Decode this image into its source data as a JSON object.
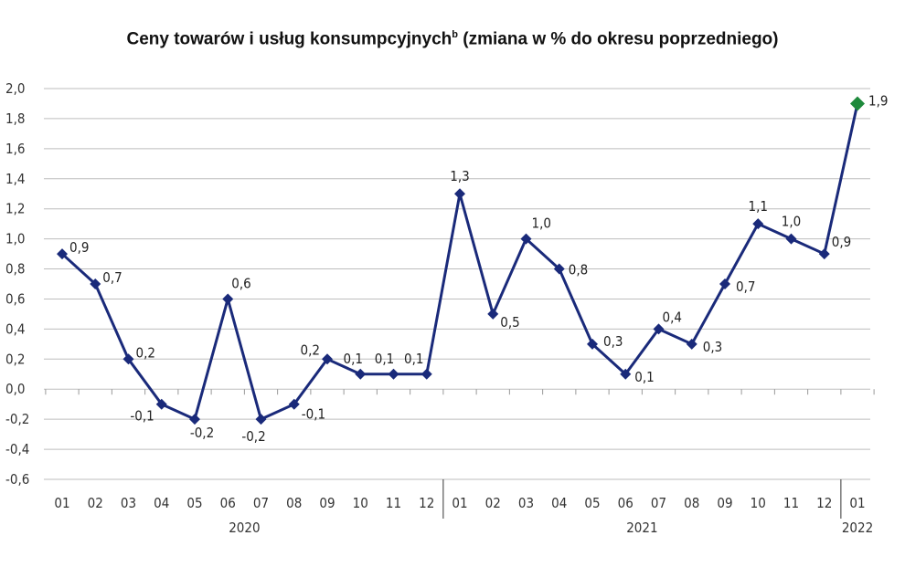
{
  "chart_data": {
    "type": "line",
    "title": "Ceny towarów i usług konsumpcyjnych",
    "title_sup": "b",
    "title_suffix": " (zmiana w % do okresu poprzedniego)",
    "ylim": [
      -0.6,
      2.0
    ],
    "yticks": [
      "2,0",
      "1,8",
      "1,6",
      "1,4",
      "1,2",
      "1,0",
      "0,8",
      "0,6",
      "0,4",
      "0,2",
      "0,0",
      "-0,2",
      "-0,4",
      "-0,6"
    ],
    "ytick_values": [
      2.0,
      1.8,
      1.6,
      1.4,
      1.2,
      1.0,
      0.8,
      0.6,
      0.4,
      0.2,
      0.0,
      -0.2,
      -0.4,
      -0.6
    ],
    "grid": true,
    "categories": [
      "01",
      "02",
      "03",
      "04",
      "05",
      "06",
      "07",
      "08",
      "09",
      "10",
      "11",
      "12",
      "01",
      "02",
      "03",
      "04",
      "05",
      "06",
      "07",
      "08",
      "09",
      "10",
      "11",
      "12",
      "01"
    ],
    "year_groups": [
      {
        "label": "2020",
        "start": 0,
        "end": 11
      },
      {
        "label": "2021",
        "start": 12,
        "end": 23
      },
      {
        "label": "2022",
        "start": 24,
        "end": 24
      }
    ],
    "series": [
      {
        "values": [
          0.9,
          0.7,
          0.2,
          -0.1,
          -0.2,
          0.6,
          -0.2,
          -0.1,
          0.2,
          0.1,
          0.1,
          0.1,
          1.3,
          0.5,
          1.0,
          0.8,
          0.3,
          0.1,
          0.4,
          0.3,
          0.7,
          1.1,
          1.0,
          0.9,
          1.9
        ],
        "labels": [
          "0,9",
          "0,7",
          "0,2",
          "-0,1",
          "-0,2",
          "0,6",
          "-0,2",
          "-0,1",
          "0,2",
          "0,1",
          "0,1",
          "0,1",
          "1,3",
          "0,5",
          "1,0",
          "0,8",
          "0,3",
          "0,1",
          "0,4",
          "0,3",
          "0,7",
          "1,1",
          "1,0",
          "0,9",
          "1,9"
        ],
        "color": "#1a2a7a",
        "highlight_last_color": "#1e8a3c"
      }
    ]
  }
}
